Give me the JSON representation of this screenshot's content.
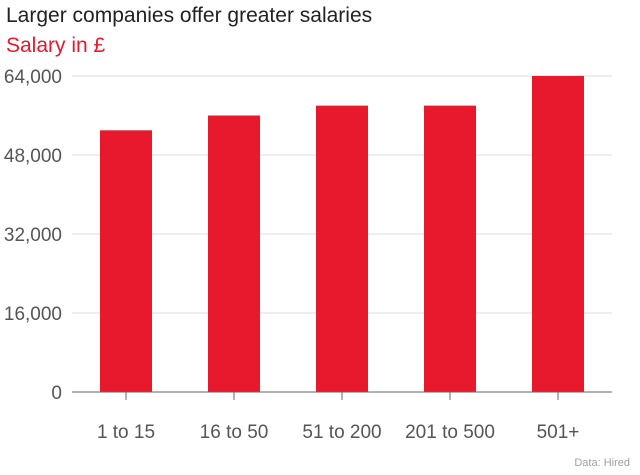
{
  "header": {
    "title": "Larger companies offer greater salaries",
    "subtitle": "Salary in £"
  },
  "source": "Data: Hired",
  "colors": {
    "bar": "#e8192c",
    "subtitle": "#e8192c",
    "grid": "#dddddd",
    "axis_text": "#555555"
  },
  "chart_data": {
    "type": "bar",
    "title": "Larger companies offer greater salaries",
    "subtitle": "Salary in £",
    "xlabel": "",
    "ylabel": "",
    "categories": [
      "1 to 15",
      "16 to 50",
      "51 to 200",
      "201 to 500",
      "501+"
    ],
    "values": [
      53000,
      56000,
      58000,
      58000,
      64000
    ],
    "ylim": [
      0,
      64000
    ],
    "yticks": [
      0,
      16000,
      32000,
      48000,
      64000
    ],
    "ytick_labels": [
      "0",
      "16,000",
      "32,000",
      "48,000",
      "64,000"
    ],
    "grid": true,
    "legend": "none"
  }
}
